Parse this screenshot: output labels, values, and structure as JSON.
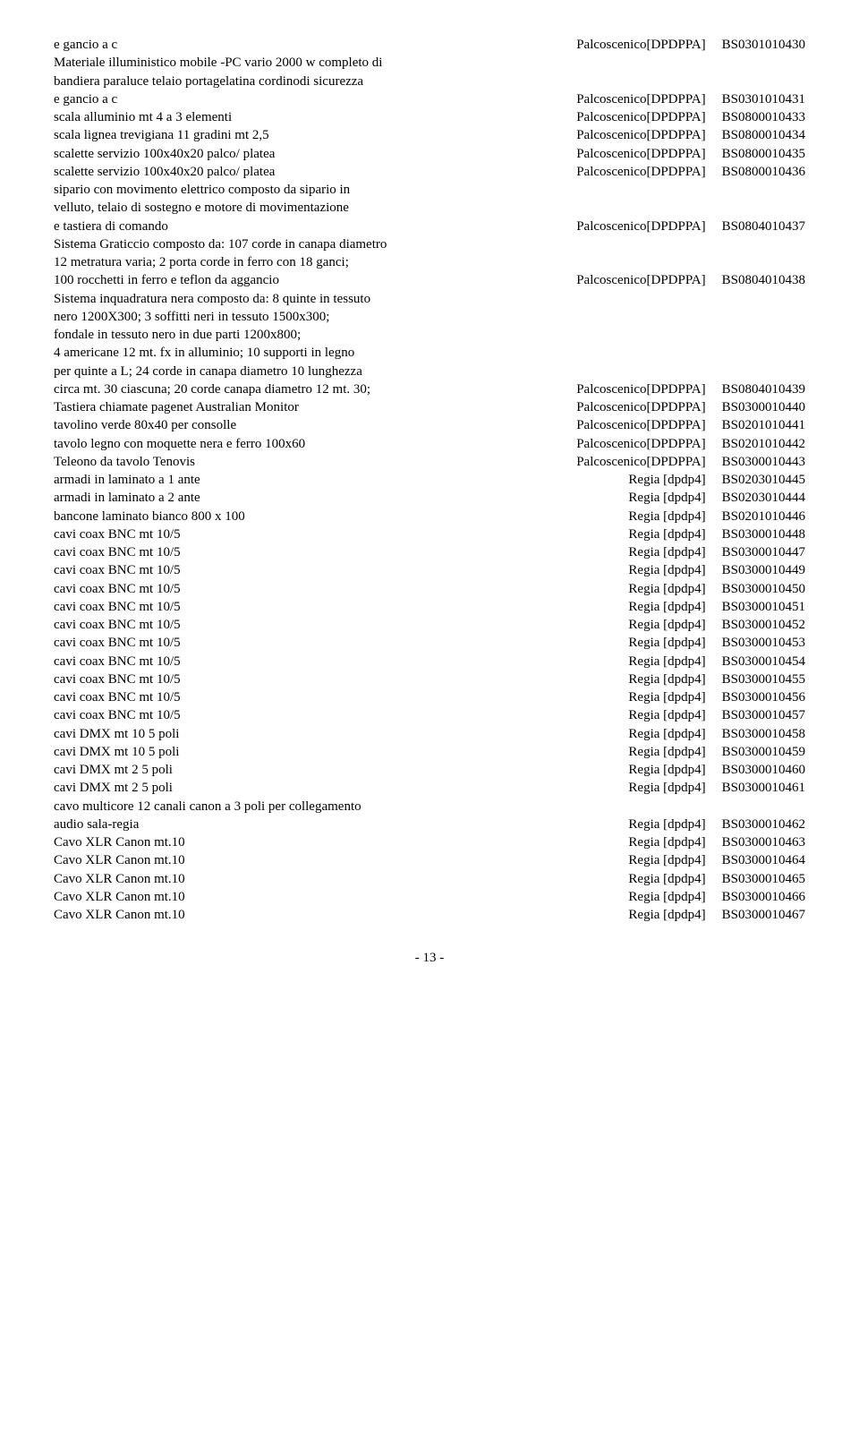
{
  "rows": [
    {
      "left": "e gancio a c",
      "loc": "Palcoscenico[DPDPPA]",
      "code": "BS0301010430"
    },
    {
      "left": "Materiale illuministico mobile -PC vario 2000 w completo di",
      "loc": "",
      "code": ""
    },
    {
      "left": "bandiera paraluce telaio portagelatina cordinodi sicurezza",
      "loc": "",
      "code": ""
    },
    {
      "left": "e gancio a c",
      "loc": "Palcoscenico[DPDPPA]",
      "code": "BS0301010431"
    },
    {
      "left": "scala alluminio mt 4 a 3 elementi",
      "loc": "Palcoscenico[DPDPPA]",
      "code": "BS0800010433"
    },
    {
      "left": "scala lignea trevigiana 11 gradini mt 2,5",
      "loc": "Palcoscenico[DPDPPA]",
      "code": "BS0800010434"
    },
    {
      "left": "scalette servizio 100x40x20 palco/ platea",
      "loc": "Palcoscenico[DPDPPA]",
      "code": "BS0800010435"
    },
    {
      "left": "scalette servizio 100x40x20 palco/ platea",
      "loc": "Palcoscenico[DPDPPA]",
      "code": "BS0800010436"
    },
    {
      "left": "sipario con movimento elettrico composto da sipario in",
      "loc": "",
      "code": ""
    },
    {
      "left": "velluto, telaio di sostegno e motore di movimentazione",
      "loc": "",
      "code": ""
    },
    {
      "left": "e tastiera di comando",
      "loc": "Palcoscenico[DPDPPA]",
      "code": "BS0804010437"
    },
    {
      "left": "Sistema Graticcio composto da: 107 corde in canapa diametro",
      "loc": "",
      "code": ""
    },
    {
      "left": "12 metratura varia; 2 porta corde in ferro con 18 ganci;",
      "loc": "",
      "code": ""
    },
    {
      "left": "100 rocchetti in ferro e teflon da aggancio",
      "loc": "Palcoscenico[DPDPPA]",
      "code": "BS0804010438"
    },
    {
      "left": "Sistema inquadratura nera composto da: 8 quinte in tessuto",
      "loc": "",
      "code": ""
    },
    {
      "left": "nero 1200X300; 3 soffitti neri in tessuto 1500x300;",
      "loc": "",
      "code": ""
    },
    {
      "left": "fondale in tessuto nero in due parti 1200x800;",
      "loc": "",
      "code": ""
    },
    {
      "left": "4 americane 12 mt. fx in alluminio; 10 supporti in legno",
      "loc": "",
      "code": ""
    },
    {
      "left": "per quinte a L; 24 corde in canapa diametro 10 lunghezza",
      "loc": "",
      "code": ""
    },
    {
      "left": "circa mt. 30 ciascuna; 20 corde canapa diametro 12 mt. 30;",
      "loc": "Palcoscenico[DPDPPA]",
      "code": "BS0804010439"
    },
    {
      "left": "Tastiera chiamate pagenet Australian Monitor",
      "loc": "Palcoscenico[DPDPPA]",
      "code": "BS0300010440"
    },
    {
      "left": "tavolino verde 80x40 per consolle",
      "loc": "Palcoscenico[DPDPPA]",
      "code": "BS0201010441"
    },
    {
      "left": "tavolo legno con moquette nera e ferro 100x60",
      "loc": "Palcoscenico[DPDPPA]",
      "code": "BS0201010442"
    },
    {
      "left": "Teleono da tavolo Tenovis",
      "loc": "Palcoscenico[DPDPPA]",
      "code": "BS0300010443"
    },
    {
      "left": "armadi in laminato a 1 ante",
      "loc": "Regia [dpdp4]",
      "code": "BS0203010445"
    },
    {
      "left": "armadi in laminato a 2 ante",
      "loc": "Regia [dpdp4]",
      "code": "BS0203010444"
    },
    {
      "left": "bancone laminato bianco 800 x 100",
      "loc": "Regia [dpdp4]",
      "code": "BS0201010446"
    },
    {
      "left": "cavi coax BNC mt 10/5",
      "loc": "Regia [dpdp4]",
      "code": "BS0300010448"
    },
    {
      "left": "cavi coax BNC mt 10/5",
      "loc": "Regia [dpdp4]",
      "code": "BS0300010447"
    },
    {
      "left": "cavi coax BNC mt 10/5",
      "loc": "Regia [dpdp4]",
      "code": "BS0300010449"
    },
    {
      "left": "cavi coax BNC mt 10/5",
      "loc": "Regia [dpdp4]",
      "code": "BS0300010450"
    },
    {
      "left": "cavi coax BNC mt 10/5",
      "loc": "Regia [dpdp4]",
      "code": "BS0300010451"
    },
    {
      "left": "cavi coax BNC mt 10/5",
      "loc": "Regia [dpdp4]",
      "code": "BS0300010452"
    },
    {
      "left": "cavi coax BNC mt 10/5",
      "loc": "Regia [dpdp4]",
      "code": "BS0300010453"
    },
    {
      "left": "cavi coax BNC mt 10/5",
      "loc": "Regia [dpdp4]",
      "code": "BS0300010454"
    },
    {
      "left": "cavi coax BNC mt 10/5",
      "loc": "Regia [dpdp4]",
      "code": "BS0300010455"
    },
    {
      "left": "cavi coax BNC mt 10/5",
      "loc": "Regia [dpdp4]",
      "code": "BS0300010456"
    },
    {
      "left": "cavi coax BNC mt 10/5",
      "loc": "Regia [dpdp4]",
      "code": "BS0300010457"
    },
    {
      "left": "cavi DMX mt 10 5 poli",
      "loc": "Regia [dpdp4]",
      "code": "BS0300010458"
    },
    {
      "left": "cavi DMX mt 10 5 poli",
      "loc": "Regia [dpdp4]",
      "code": "BS0300010459"
    },
    {
      "left": "cavi DMX mt 2 5 poli",
      "loc": "Regia [dpdp4]",
      "code": "BS0300010460"
    },
    {
      "left": "cavi DMX mt 2 5 poli",
      "loc": "Regia [dpdp4]",
      "code": "BS0300010461"
    },
    {
      "left": "cavo multicore 12 canali canon a 3 poli per collegamento",
      "loc": "",
      "code": ""
    },
    {
      "left": "audio sala-regia",
      "loc": "Regia [dpdp4]",
      "code": "BS0300010462"
    },
    {
      "left": "Cavo XLR Canon mt.10",
      "loc": "Regia [dpdp4]",
      "code": "BS0300010463"
    },
    {
      "left": "Cavo XLR Canon mt.10",
      "loc": "Regia [dpdp4]",
      "code": "BS0300010464"
    },
    {
      "left": "Cavo XLR Canon mt.10",
      "loc": "Regia [dpdp4]",
      "code": "BS0300010465"
    },
    {
      "left": "Cavo XLR Canon mt.10",
      "loc": "Regia [dpdp4]",
      "code": "BS0300010466"
    },
    {
      "left": "Cavo XLR Canon mt.10",
      "loc": "Regia [dpdp4]",
      "code": "BS0300010467"
    }
  ],
  "pageNum": "- 13 -"
}
